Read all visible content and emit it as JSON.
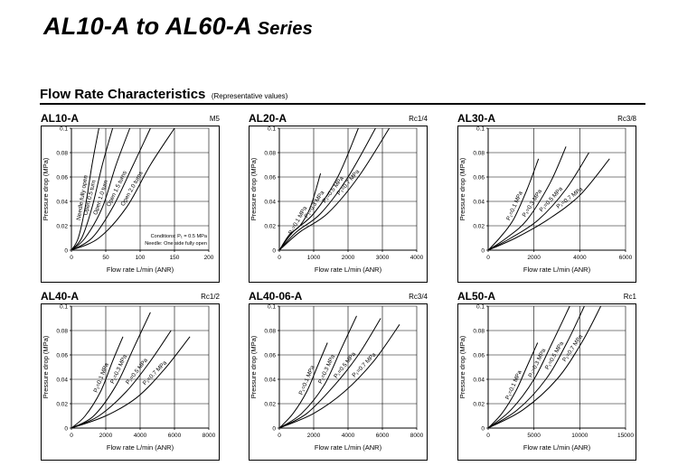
{
  "page": {
    "title_main": "AL10-A to AL60-A",
    "title_series": "Series",
    "section_title": "Flow Rate Characteristics",
    "section_subtitle": "(Representative values)"
  },
  "chart_data": [
    {
      "type": "line",
      "panel_title": "AL10-A",
      "port": "M5",
      "xlabel": "Flow rate L/min (ANR)",
      "ylabel": "Pressure drop (MPa)",
      "xlim": [
        0,
        200
      ],
      "ylim": [
        0,
        0.1
      ],
      "xticks": [
        0,
        50,
        100,
        150,
        200
      ],
      "yticks": [
        0,
        0.02,
        0.04,
        0.06,
        0.08,
        0.1
      ],
      "yticklabels": [
        "0",
        "0.02",
        "0.04",
        "0.06",
        "0.08",
        "0.1"
      ],
      "grid": true,
      "note": "Conditions: P₁ = 0.5 MPa\nNeedle: One side fully open",
      "series": [
        {
          "name": "Needle fully open",
          "label_t": 0.55,
          "x": [
            0,
            10,
            20,
            30,
            40
          ],
          "y": [
            0,
            0.01,
            0.035,
            0.07,
            0.1
          ]
        },
        {
          "name": "Open 0.5 turn",
          "label_t": 0.55,
          "x": [
            0,
            15,
            30,
            45,
            60
          ],
          "y": [
            0,
            0.01,
            0.035,
            0.07,
            0.1
          ]
        },
        {
          "name": "Open 1.0 turn",
          "label_t": 0.55,
          "x": [
            0,
            20,
            45,
            65,
            85
          ],
          "y": [
            0,
            0.01,
            0.035,
            0.07,
            0.1
          ]
        },
        {
          "name": "Open 1.5 turns",
          "label_t": 0.6,
          "x": [
            0,
            30,
            60,
            90,
            115
          ],
          "y": [
            0,
            0.01,
            0.035,
            0.07,
            0.1
          ]
        },
        {
          "name": "Open 2.0 turns",
          "label_t": 0.6,
          "x": [
            0,
            40,
            80,
            115,
            150
          ],
          "y": [
            0,
            0.01,
            0.035,
            0.07,
            0.1
          ]
        }
      ]
    },
    {
      "type": "line",
      "panel_title": "AL20-A",
      "port": "Rc1/4",
      "xlabel": "Flow rate L/min (ANR)",
      "ylabel": "Pressure drop (MPa)",
      "xlim": [
        0,
        4000
      ],
      "ylim": [
        0,
        0.1
      ],
      "xticks": [
        0,
        1000,
        2000,
        3000,
        4000
      ],
      "yticks": [
        0,
        0.02,
        0.04,
        0.06,
        0.08,
        0.1
      ],
      "yticklabels": [
        "0",
        "0.02",
        "0.04",
        "0.06",
        "0.08",
        "0.1"
      ],
      "grid": true,
      "series": [
        {
          "name": "P₁=0.1 MPa",
          "label_t": 0.55,
          "x": [
            0,
            300,
            600,
            900,
            1200
          ],
          "y": [
            0,
            0.013,
            0.02,
            0.035,
            0.063
          ]
        },
        {
          "name": "P₁=0.3 MPa",
          "label_t": 0.55,
          "x": [
            0,
            400,
            1000,
            1700,
            2300
          ],
          "y": [
            0,
            0.015,
            0.03,
            0.06,
            0.1
          ]
        },
        {
          "name": "P₁=0.5 MPa",
          "label_t": 0.65,
          "x": [
            0,
            500,
            1200,
            2000,
            2800
          ],
          "y": [
            0,
            0.015,
            0.03,
            0.06,
            0.1
          ]
        },
        {
          "name": "P₁=0.7 MPa",
          "label_t": 0.7,
          "x": [
            0,
            600,
            1400,
            2300,
            3200
          ],
          "y": [
            0,
            0.015,
            0.03,
            0.06,
            0.1
          ]
        }
      ]
    },
    {
      "type": "line",
      "panel_title": "AL30-A",
      "port": "Rc3/8",
      "xlabel": "Flow rate L/min (ANR)",
      "ylabel": "Pressure drop (MPa)",
      "xlim": [
        0,
        6000
      ],
      "ylim": [
        0,
        0.1
      ],
      "xticks": [
        0,
        2000,
        4000,
        6000
      ],
      "yticks": [
        0,
        0.02,
        0.04,
        0.06,
        0.08,
        0.1
      ],
      "yticklabels": [
        "0",
        "0.02",
        "0.04",
        "0.06",
        "0.08",
        "0.1"
      ],
      "grid": true,
      "series": [
        {
          "name": "P₁=0.1 MPa",
          "label_t": 0.6,
          "x": [
            0,
            500,
            1100,
            1700,
            2200
          ],
          "y": [
            0,
            0.01,
            0.025,
            0.05,
            0.075
          ]
        },
        {
          "name": "P₁=0.3 MPa",
          "label_t": 0.6,
          "x": [
            0,
            800,
            1700,
            2700,
            3400
          ],
          "y": [
            0,
            0.01,
            0.025,
            0.055,
            0.085
          ]
        },
        {
          "name": "P₁=0.5 MPa",
          "label_t": 0.65,
          "x": [
            0,
            1000,
            2200,
            3400,
            4400
          ],
          "y": [
            0,
            0.01,
            0.025,
            0.05,
            0.08
          ]
        },
        {
          "name": "P₁=0.7 MPa",
          "label_t": 0.7,
          "x": [
            0,
            1200,
            2600,
            4000,
            5300
          ],
          "y": [
            0,
            0.01,
            0.025,
            0.045,
            0.075
          ]
        }
      ]
    },
    {
      "type": "line",
      "panel_title": "AL40-A",
      "port": "Rc1/2",
      "xlabel": "Flow rate L/min (ANR)",
      "ylabel": "Pressure drop (MPa)",
      "xlim": [
        0,
        8000
      ],
      "ylim": [
        0,
        0.1
      ],
      "xticks": [
        0,
        2000,
        4000,
        6000,
        8000
      ],
      "yticks": [
        0,
        0.02,
        0.04,
        0.06,
        0.08,
        0.1
      ],
      "yticklabels": [
        "0",
        "0.02",
        "0.04",
        "0.06",
        "0.08",
        "0.1"
      ],
      "grid": true,
      "series": [
        {
          "name": "P₁=0.1 MPa",
          "label_t": 0.6,
          "x": [
            0,
            800,
            1700,
            2400,
            3000
          ],
          "y": [
            0,
            0.01,
            0.03,
            0.055,
            0.075
          ]
        },
        {
          "name": "P₁=0.3 MPa",
          "label_t": 0.6,
          "x": [
            0,
            1300,
            2600,
            3600,
            4600
          ],
          "y": [
            0,
            0.01,
            0.035,
            0.065,
            0.095
          ]
        },
        {
          "name": "P₁=0.5 MPa",
          "label_t": 0.65,
          "x": [
            0,
            1600,
            3200,
            4600,
            5800
          ],
          "y": [
            0,
            0.01,
            0.03,
            0.055,
            0.08
          ]
        },
        {
          "name": "P₁=0.7 MPa",
          "label_t": 0.7,
          "x": [
            0,
            2000,
            3800,
            5400,
            6900
          ],
          "y": [
            0,
            0.01,
            0.025,
            0.048,
            0.075
          ]
        }
      ]
    },
    {
      "type": "line",
      "panel_title": "AL40-06-A",
      "port": "Rc3/4",
      "xlabel": "Flow rate L/min (ANR)",
      "ylabel": "Pressure drop (MPa)",
      "xlim": [
        0,
        8000
      ],
      "ylim": [
        0,
        0.1
      ],
      "xticks": [
        0,
        2000,
        4000,
        6000,
        8000
      ],
      "yticks": [
        0,
        0.02,
        0.04,
        0.06,
        0.08,
        0.1
      ],
      "yticklabels": [
        "0",
        "0.02",
        "0.04",
        "0.06",
        "0.08",
        "0.1"
      ],
      "grid": true,
      "series": [
        {
          "name": "P₁=0.1 MPa",
          "label_t": 0.6,
          "x": [
            0,
            800,
            1600,
            2200,
            2800
          ],
          "y": [
            0,
            0.012,
            0.03,
            0.05,
            0.07
          ]
        },
        {
          "name": "P₁=0.3 MPa",
          "label_t": 0.6,
          "x": [
            0,
            1300,
            2600,
            3600,
            4500
          ],
          "y": [
            0,
            0.012,
            0.035,
            0.065,
            0.092
          ]
        },
        {
          "name": "P₁=0.5 MPa",
          "label_t": 0.65,
          "x": [
            0,
            1600,
            3200,
            4600,
            5900
          ],
          "y": [
            0,
            0.012,
            0.035,
            0.06,
            0.09
          ]
        },
        {
          "name": "P₁=0.7 MPa",
          "label_t": 0.7,
          "x": [
            0,
            2000,
            3800,
            5500,
            7000
          ],
          "y": [
            0,
            0.012,
            0.03,
            0.055,
            0.085
          ]
        }
      ]
    },
    {
      "type": "line",
      "panel_title": "AL50-A",
      "port": "Rc1",
      "xlabel": "Flow rate L/min (ANR)",
      "ylabel": "Pressure drop (MPa)",
      "xlim": [
        0,
        15000
      ],
      "ylim": [
        0,
        0.1
      ],
      "xticks": [
        0,
        5000,
        10000,
        15000
      ],
      "yticks": [
        0,
        0.02,
        0.04,
        0.06,
        0.08,
        0.1
      ],
      "yticklabels": [
        "0",
        "0.02",
        "0.04",
        "0.06",
        "0.08",
        "0.1"
      ],
      "grid": true,
      "series": [
        {
          "name": "P₁=0.1 MPa",
          "label_t": 0.55,
          "x": [
            0,
            1500,
            3000,
            4200,
            5400
          ],
          "y": [
            0,
            0.012,
            0.03,
            0.05,
            0.07
          ]
        },
        {
          "name": "P₁=0.3 MPa",
          "label_t": 0.6,
          "x": [
            0,
            2500,
            5000,
            7000,
            8900
          ],
          "y": [
            0,
            0.015,
            0.04,
            0.07,
            0.1
          ]
        },
        {
          "name": "P₁=0.5 MPa",
          "label_t": 0.65,
          "x": [
            0,
            3200,
            6300,
            8600,
            10500
          ],
          "y": [
            0,
            0.015,
            0.04,
            0.07,
            0.1
          ]
        },
        {
          "name": "P₁=0.7 MPa",
          "label_t": 0.7,
          "x": [
            0,
            3800,
            7500,
            10200,
            12300
          ],
          "y": [
            0,
            0.015,
            0.04,
            0.07,
            0.1
          ]
        }
      ]
    }
  ]
}
